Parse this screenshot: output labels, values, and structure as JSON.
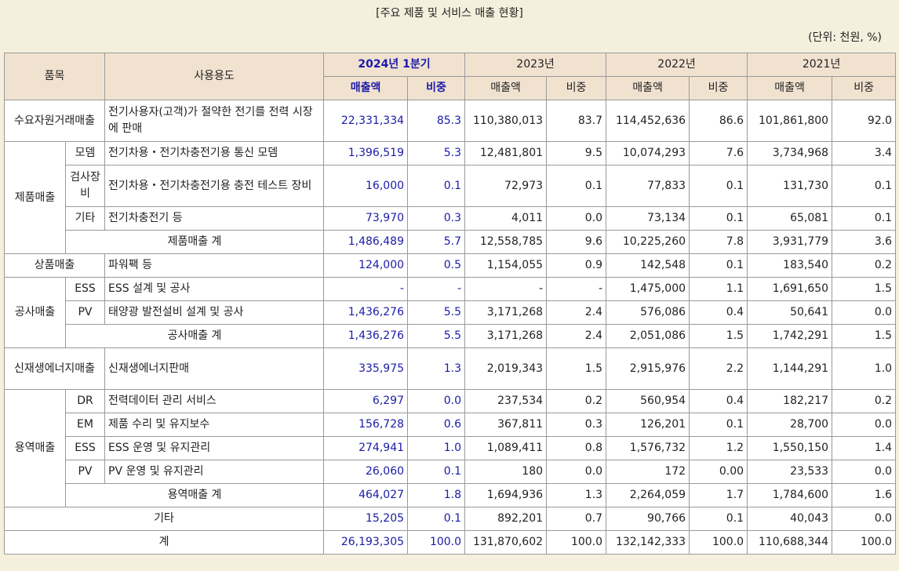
{
  "title": "[주요 제품 및 서비스 매출 현황]",
  "unit": "(단위: 천원, %)",
  "table": {
    "header": {
      "item": "품목",
      "usage": "사용용도",
      "periods": [
        "2024년 1분기",
        "2023년",
        "2022년",
        "2021년"
      ],
      "sub": [
        "매출액",
        "비중",
        "매출액",
        "비중",
        "매출액",
        "비중",
        "매출액",
        "비중"
      ]
    },
    "groups": [
      {
        "category": "수요자원거래매출",
        "rows": [
          {
            "usage": "전기사용자(고객)가 절약한 전기를 전력 시장에 판매",
            "values": [
              "22,331,334",
              "85.3",
              "110,380,013",
              "83.7",
              "114,452,636",
              "86.6",
              "101,861,800",
              "92.0"
            ]
          }
        ]
      },
      {
        "category": "제품매출",
        "rows": [
          {
            "item": "모뎀",
            "usage": "전기차용・전기차충전기용 통신 모뎀",
            "values": [
              "1,396,519",
              "5.3",
              "12,481,801",
              "9.5",
              "10,074,293",
              "7.6",
              "3,734,968",
              "3.4"
            ]
          },
          {
            "item": "검사장비",
            "usage": "전기차용・전기차충전기용 충전 테스트 장비",
            "values": [
              "16,000",
              "0.1",
              "72,973",
              "0.1",
              "77,833",
              "0.1",
              "131,730",
              "0.1"
            ]
          },
          {
            "item": "기타",
            "usage": "전기차충전기 등",
            "values": [
              "73,970",
              "0.3",
              "4,011",
              "0.0",
              "73,134",
              "0.1",
              "65,081",
              "0.1"
            ]
          },
          {
            "total": "제품매출 계",
            "values": [
              "1,486,489",
              "5.7",
              "12,558,785",
              "9.6",
              "10,225,260",
              "7.8",
              "3,931,779",
              "3.6"
            ]
          }
        ]
      },
      {
        "category": "상품매출",
        "rows": [
          {
            "usage": "파워팩 등",
            "values": [
              "124,000",
              "0.5",
              "1,154,055",
              "0.9",
              "142,548",
              "0.1",
              "183,540",
              "0.2"
            ]
          }
        ]
      },
      {
        "category": "공사매출",
        "rows": [
          {
            "item": "ESS",
            "usage": "ESS 설계 및 공사",
            "values": [
              "-",
              "-",
              "-",
              "-",
              "1,475,000",
              "1.1",
              "1,691,650",
              "1.5"
            ]
          },
          {
            "item": "PV",
            "usage": "태양광 발전설비 설계 및 공사",
            "values": [
              "1,436,276",
              "5.5",
              "3,171,268",
              "2.4",
              "576,086",
              "0.4",
              "50,641",
              "0.0"
            ]
          },
          {
            "total": "공사매출 계",
            "values": [
              "1,436,276",
              "5.5",
              "3,171,268",
              "2.4",
              "2,051,086",
              "1.5",
              "1,742,291",
              "1.5"
            ]
          }
        ]
      },
      {
        "category": "신재생에너지매출",
        "rows": [
          {
            "usage": "신재생에너지판매",
            "values": [
              "335,975",
              "1.3",
              "2,019,343",
              "1.5",
              "2,915,976",
              "2.2",
              "1,144,291",
              "1.0"
            ]
          }
        ]
      },
      {
        "category": "용역매출",
        "rows": [
          {
            "item": "DR",
            "usage": "전력데이터 관리 서비스",
            "values": [
              "6,297",
              "0.0",
              "237,534",
              "0.2",
              "560,954",
              "0.4",
              "182,217",
              "0.2"
            ]
          },
          {
            "item": "EM",
            "usage": "제품 수리 및 유지보수",
            "values": [
              "156,728",
              "0.6",
              "367,811",
              "0.3",
              "126,201",
              "0.1",
              "28,700",
              "0.0"
            ]
          },
          {
            "item": "ESS",
            "usage": "ESS 운영 및 유지관리",
            "values": [
              "274,941",
              "1.0",
              "1,089,411",
              "0.8",
              "1,576,732",
              "1.2",
              "1,550,150",
              "1.4"
            ]
          },
          {
            "item": "PV",
            "usage": "PV 운영 및 유지관리",
            "values": [
              "26,060",
              "0.1",
              "180",
              "0.0",
              "172",
              "0.00",
              "23,533",
              "0.0"
            ]
          },
          {
            "total": "용역매출 계",
            "values": [
              "464,027",
              "1.8",
              "1,694,936",
              "1.3",
              "2,264,059",
              "1.7",
              "1,784,600",
              "1.6"
            ]
          }
        ]
      },
      {
        "rows": [
          {
            "total": "기타",
            "values": [
              "15,205",
              "0.1",
              "892,201",
              "0.7",
              "90,766",
              "0.1",
              "40,043",
              "0.0"
            ]
          }
        ]
      },
      {
        "rows": [
          {
            "total": "계",
            "values": [
              "26,193,305",
              "100.0",
              "131,870,602",
              "100.0",
              "132,142,333",
              "100.0",
              "110,688,344",
              "100.0"
            ]
          }
        ]
      }
    ]
  }
}
